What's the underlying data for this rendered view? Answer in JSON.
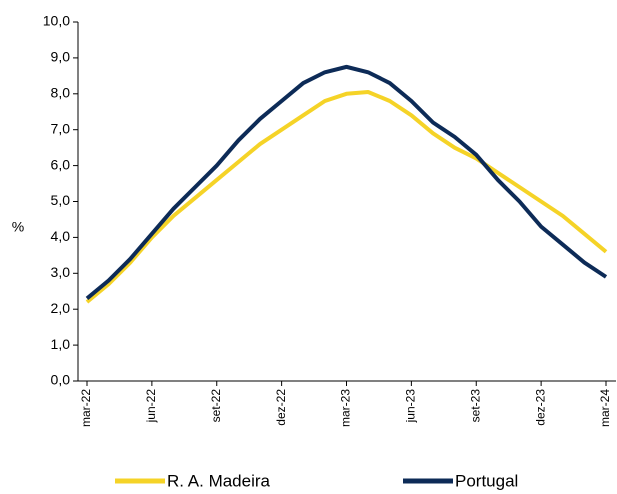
{
  "chart_data": {
    "type": "line",
    "y_label": "%",
    "categories": [
      "mar-22",
      null,
      null,
      "jun-22",
      null,
      null,
      "set-22",
      null,
      null,
      "dez-22",
      null,
      null,
      "mar-23",
      null,
      null,
      "jun-23",
      null,
      null,
      "set-23",
      null,
      null,
      "dez-23",
      null,
      null,
      "mar-24"
    ],
    "series": [
      {
        "name": "R. A. Madeira",
        "color": "#f5d327",
        "values": [
          2.2,
          2.7,
          3.3,
          4.0,
          4.6,
          5.1,
          5.6,
          6.1,
          6.6,
          7.0,
          7.4,
          7.8,
          8.0,
          8.05,
          7.8,
          7.4,
          6.9,
          6.5,
          6.2,
          5.8,
          5.4,
          5.0,
          4.6,
          4.1,
          3.6
        ]
      },
      {
        "name": "Portugal",
        "color": "#0d2b57",
        "values": [
          2.3,
          2.8,
          3.4,
          4.1,
          4.8,
          5.4,
          6.0,
          6.7,
          7.3,
          7.8,
          8.3,
          8.6,
          8.75,
          8.6,
          8.3,
          7.8,
          7.2,
          6.8,
          6.3,
          5.6,
          5.0,
          4.3,
          3.8,
          3.3,
          2.9
        ]
      }
    ],
    "ylim": [
      0,
      10
    ],
    "yticks": [
      {
        "value": 0,
        "label": "0,0"
      },
      {
        "value": 1,
        "label": "1,0"
      },
      {
        "value": 2,
        "label": "2,0"
      },
      {
        "value": 3,
        "label": "3,0"
      },
      {
        "value": 4,
        "label": "4,0"
      },
      {
        "value": 5,
        "label": "5,0"
      },
      {
        "value": 6,
        "label": "6,0"
      },
      {
        "value": 7,
        "label": "7,0"
      },
      {
        "value": 8,
        "label": "8,0"
      },
      {
        "value": 9,
        "label": "9,0"
      },
      {
        "value": 10,
        "label": "10,0"
      }
    ]
  }
}
